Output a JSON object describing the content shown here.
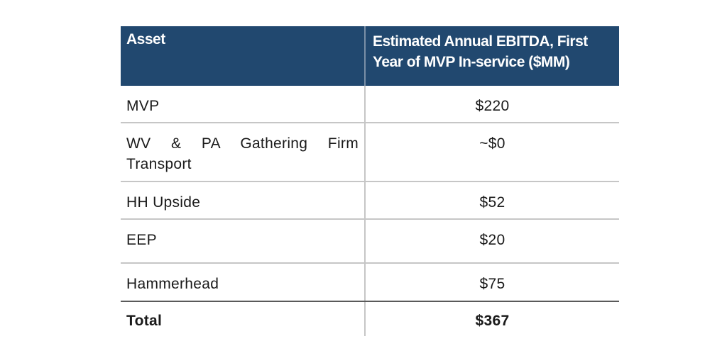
{
  "table": {
    "header": {
      "asset": "Asset",
      "ebitda_line1": "Estimated Annual EBITDA, First",
      "ebitda_line2": "Year of MVP In-service ($MM)"
    },
    "rows": [
      {
        "asset": "MVP",
        "value": "$220"
      },
      {
        "asset": "WV & PA Gathering Firm Transport",
        "value": "~$0"
      },
      {
        "asset": "HH Upside",
        "value": "$52"
      },
      {
        "asset": "EEP",
        "value": "$20"
      },
      {
        "asset": "Hammerhead",
        "value": "$75"
      }
    ],
    "total": {
      "label": "Total",
      "value": "$367"
    }
  },
  "colors": {
    "header_bg": "#21486f",
    "header_text": "#ffffff",
    "rule": "#c6c6c6"
  }
}
